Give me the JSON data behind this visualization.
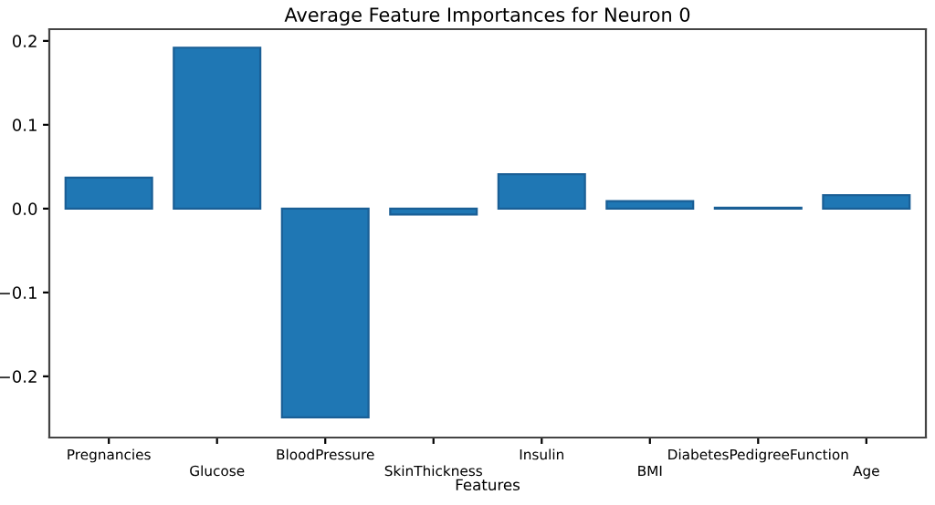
{
  "chart_data": {
    "type": "bar",
    "title": "Average Feature Importances for Neuron 0",
    "xlabel": "Features",
    "categories": [
      "Pregnancies",
      "Glucose",
      "BloodPressure",
      "SkinThickness",
      "Insulin",
      "BMI",
      "DiabetesPedigreeFunction",
      "Age"
    ],
    "values": [
      0.037,
      0.192,
      -0.249,
      -0.007,
      0.041,
      0.009,
      0.001,
      0.016
    ],
    "color": "#1f77b4",
    "ylim": [
      -0.273,
      0.214
    ],
    "yticks": [
      {
        "value": -0.2,
        "label": "−0.2"
      },
      {
        "value": -0.1,
        "label": "−0.1"
      },
      {
        "value": 0.0,
        "label": "0.0"
      },
      {
        "value": 0.1,
        "label": "0.1"
      },
      {
        "value": 0.2,
        "label": "0.2"
      }
    ],
    "grid": false,
    "legend": false
  }
}
